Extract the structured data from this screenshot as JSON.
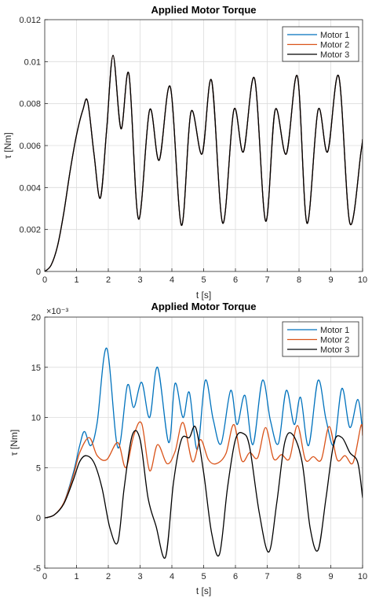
{
  "chart_data": [
    {
      "type": "line",
      "title": "Applied Motor Torque",
      "xlabel": "t [s]",
      "ylabel": "τ [Nm]",
      "exponent_label": "",
      "xlim": [
        0,
        10
      ],
      "ylim": [
        0,
        0.012
      ],
      "xticks": [
        0,
        1,
        2,
        3,
        4,
        5,
        6,
        7,
        8,
        9,
        10
      ],
      "yticks": [
        0,
        0.002,
        0.004,
        0.006,
        0.008,
        0.01,
        0.012
      ],
      "ytick_labels": [
        "0",
        "0.002",
        "0.004",
        "0.006",
        "0.008",
        "0.01",
        "0.012"
      ],
      "grid": true,
      "legend_position": "top-right",
      "series": [
        {
          "name": "Motor 1",
          "color": "#0072BD",
          "x": [
            0,
            0.2,
            0.4,
            0.6,
            0.8,
            1.0,
            1.2,
            1.35,
            1.55,
            1.75,
            1.95,
            2.15,
            2.4,
            2.65,
            2.95,
            3.3,
            3.6,
            3.95,
            4.3,
            4.6,
            4.95,
            5.25,
            5.6,
            5.95,
            6.25,
            6.6,
            6.95,
            7.25,
            7.6,
            7.95,
            8.25,
            8.6,
            8.9,
            9.25,
            9.6,
            9.95,
            10
          ],
          "y": [
            0,
            0.0003,
            0.0012,
            0.0028,
            0.0048,
            0.0065,
            0.0077,
            0.0081,
            0.0056,
            0.0035,
            0.0068,
            0.0103,
            0.0068,
            0.0094,
            0.0025,
            0.0077,
            0.0053,
            0.0088,
            0.0022,
            0.0076,
            0.0056,
            0.0091,
            0.0023,
            0.0077,
            0.0057,
            0.0092,
            0.0024,
            0.0077,
            0.0056,
            0.0093,
            0.0023,
            0.0077,
            0.0057,
            0.0093,
            0.0023,
            0.0057,
            0.0063
          ]
        },
        {
          "name": "Motor 2",
          "color": "#D95319",
          "x": [
            0,
            0.2,
            0.4,
            0.6,
            0.8,
            1.0,
            1.2,
            1.35,
            1.55,
            1.75,
            1.95,
            2.15,
            2.4,
            2.65,
            2.95,
            3.3,
            3.6,
            3.95,
            4.3,
            4.6,
            4.95,
            5.25,
            5.6,
            5.95,
            6.25,
            6.6,
            6.95,
            7.25,
            7.6,
            7.95,
            8.25,
            8.6,
            8.9,
            9.25,
            9.6,
            9.95,
            10
          ],
          "y": [
            0,
            0.0003,
            0.0012,
            0.0028,
            0.0048,
            0.0065,
            0.0077,
            0.0081,
            0.0056,
            0.0035,
            0.0068,
            0.0103,
            0.0068,
            0.0094,
            0.0025,
            0.0077,
            0.0053,
            0.0088,
            0.0022,
            0.0076,
            0.0056,
            0.0091,
            0.0023,
            0.0077,
            0.0057,
            0.0092,
            0.0024,
            0.0077,
            0.0056,
            0.0093,
            0.0023,
            0.0077,
            0.0057,
            0.0093,
            0.0023,
            0.0057,
            0.0063
          ]
        },
        {
          "name": "Motor 3",
          "color": "#000000",
          "x": [
            0,
            0.2,
            0.4,
            0.6,
            0.8,
            1.0,
            1.2,
            1.35,
            1.55,
            1.75,
            1.95,
            2.15,
            2.4,
            2.65,
            2.95,
            3.3,
            3.6,
            3.95,
            4.3,
            4.6,
            4.95,
            5.25,
            5.6,
            5.95,
            6.25,
            6.6,
            6.95,
            7.25,
            7.6,
            7.95,
            8.25,
            8.6,
            8.9,
            9.25,
            9.6,
            9.95,
            10
          ],
          "y": [
            0,
            0.0003,
            0.0012,
            0.0028,
            0.0048,
            0.0065,
            0.0077,
            0.0081,
            0.0056,
            0.0035,
            0.0068,
            0.0103,
            0.0068,
            0.0094,
            0.0025,
            0.0077,
            0.0053,
            0.0088,
            0.0022,
            0.0076,
            0.0056,
            0.0091,
            0.0023,
            0.0077,
            0.0057,
            0.0092,
            0.0024,
            0.0077,
            0.0056,
            0.0093,
            0.0023,
            0.0077,
            0.0057,
            0.0093,
            0.0023,
            0.0057,
            0.0063
          ]
        }
      ]
    },
    {
      "type": "line",
      "title": "Applied Motor Torque",
      "xlabel": "t [s]",
      "ylabel": "τ [Nm]",
      "exponent_label": "×10⁻³",
      "xlim": [
        0,
        10
      ],
      "ylim": [
        -5,
        20
      ],
      "xticks": [
        0,
        1,
        2,
        3,
        4,
        5,
        6,
        7,
        8,
        9,
        10
      ],
      "yticks": [
        -5,
        0,
        5,
        10,
        15,
        20
      ],
      "ytick_labels": [
        "-5",
        "0",
        "5",
        "10",
        "15",
        "20"
      ],
      "grid": true,
      "legend_position": "top-right",
      "series": [
        {
          "name": "Motor 1",
          "color": "#0072BD",
          "x": [
            0,
            0.3,
            0.6,
            0.9,
            1.1,
            1.25,
            1.45,
            1.65,
            1.95,
            2.3,
            2.6,
            2.8,
            3.05,
            3.3,
            3.55,
            3.9,
            4.1,
            4.35,
            4.55,
            4.8,
            5.05,
            5.3,
            5.55,
            5.85,
            6.05,
            6.3,
            6.55,
            6.85,
            7.1,
            7.35,
            7.6,
            7.85,
            8.05,
            8.3,
            8.6,
            8.85,
            9.1,
            9.35,
            9.6,
            9.85,
            10
          ],
          "y": [
            0,
            0.3,
            1.5,
            4.5,
            7.2,
            8.6,
            7.2,
            9.5,
            16.9,
            7.0,
            13.2,
            11.0,
            13.5,
            10.0,
            15.0,
            7.5,
            13.4,
            10.0,
            12.5,
            6.8,
            13.7,
            9.8,
            7.4,
            12.7,
            9.3,
            12.2,
            7.3,
            13.7,
            9.7,
            7.4,
            12.7,
            9.3,
            12.0,
            7.2,
            13.7,
            9.8,
            7.3,
            12.9,
            9.0,
            11.8,
            8.6
          ]
        },
        {
          "name": "Motor 2",
          "color": "#D95319",
          "x": [
            0,
            0.3,
            0.6,
            0.9,
            1.1,
            1.4,
            1.65,
            1.95,
            2.3,
            2.55,
            2.8,
            3.05,
            3.3,
            3.55,
            3.85,
            4.1,
            4.35,
            4.65,
            4.9,
            5.15,
            5.4,
            5.7,
            5.95,
            6.2,
            6.45,
            6.7,
            6.95,
            7.2,
            7.45,
            7.7,
            7.95,
            8.2,
            8.45,
            8.7,
            8.95,
            9.2,
            9.45,
            9.7,
            9.95,
            10
          ],
          "y": [
            0,
            0.3,
            1.5,
            4.2,
            6.5,
            8.0,
            6.2,
            5.8,
            7.5,
            5.0,
            8.2,
            9.4,
            4.7,
            7.3,
            5.4,
            6.6,
            9.5,
            5.6,
            7.8,
            5.8,
            5.4,
            6.4,
            9.3,
            5.7,
            6.5,
            6.0,
            9.0,
            5.9,
            6.3,
            5.9,
            9.2,
            5.8,
            6.1,
            5.8,
            9.1,
            5.8,
            6.2,
            5.5,
            9.2,
            8.2
          ]
        },
        {
          "name": "Motor 3",
          "color": "#000000",
          "x": [
            0,
            0.3,
            0.6,
            0.9,
            1.1,
            1.3,
            1.55,
            1.8,
            2.05,
            2.3,
            2.5,
            2.75,
            3.0,
            3.25,
            3.5,
            3.8,
            4.05,
            4.3,
            4.55,
            4.75,
            5.0,
            5.25,
            5.5,
            5.75,
            6.0,
            6.25,
            6.45,
            6.75,
            7.05,
            7.3,
            7.55,
            7.8,
            8.1,
            8.35,
            8.6,
            8.85,
            9.1,
            9.35,
            9.6,
            9.85,
            10
          ],
          "y": [
            0,
            0.3,
            1.4,
            3.8,
            5.6,
            6.2,
            5.5,
            3.0,
            -1.0,
            -2.4,
            3.0,
            8.2,
            7.8,
            2.0,
            -0.8,
            -3.9,
            3.5,
            7.8,
            8.0,
            9.0,
            4.5,
            -1.5,
            -3.6,
            3.0,
            7.8,
            8.4,
            7.0,
            0.5,
            -3.4,
            1.5,
            7.5,
            8.3,
            5.5,
            -1.0,
            -3.2,
            2.0,
            7.5,
            8.0,
            6.5,
            5.5,
            2.0
          ]
        }
      ]
    }
  ]
}
